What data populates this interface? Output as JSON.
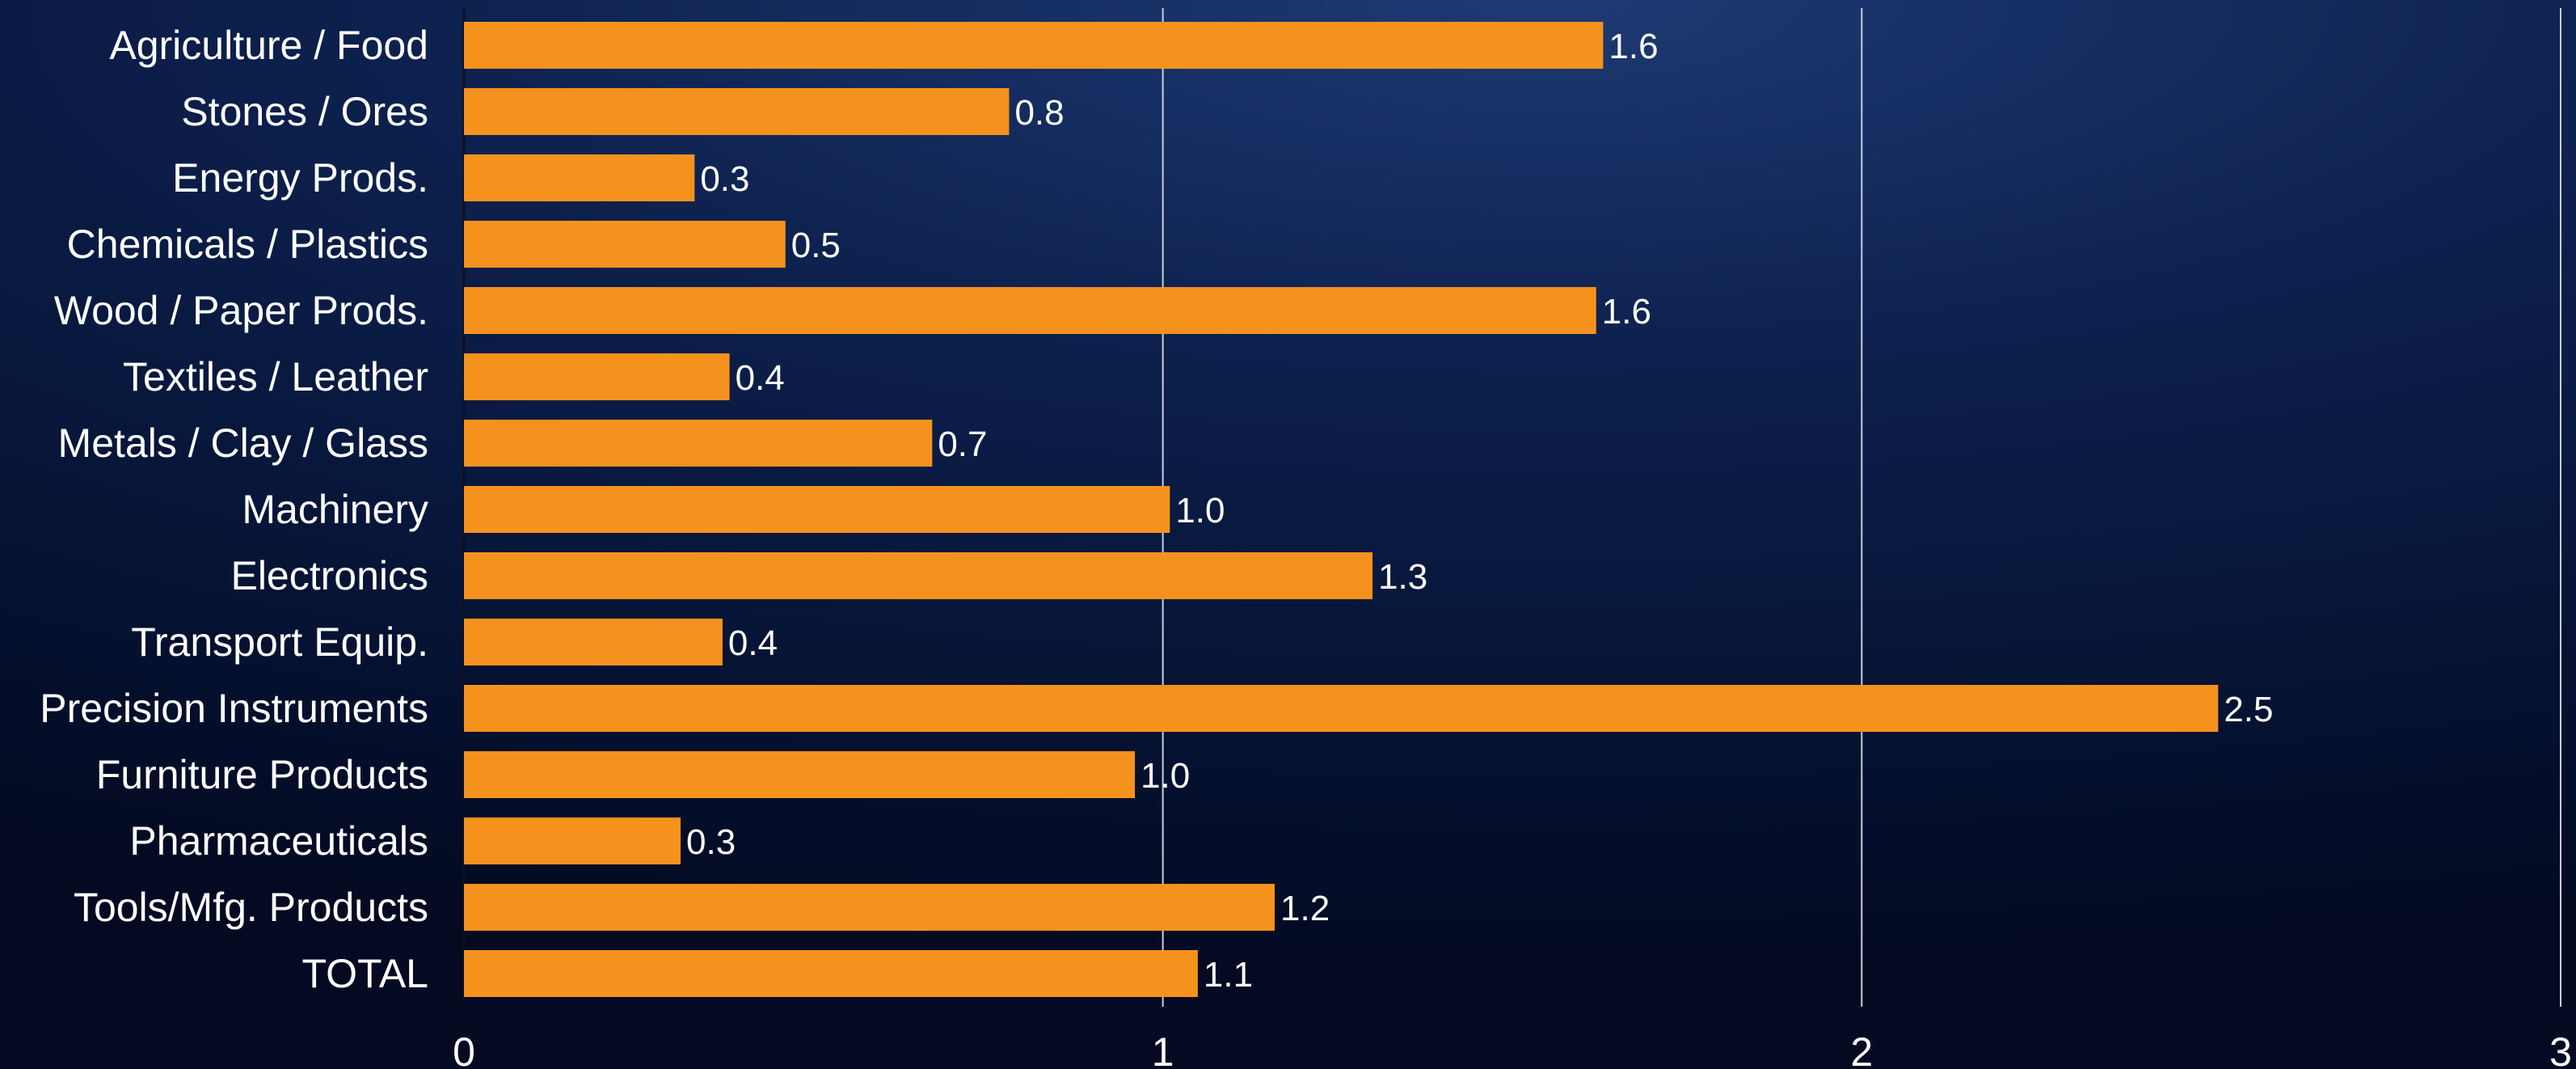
{
  "chart_data": {
    "type": "bar",
    "orientation": "horizontal",
    "title": "",
    "xlabel": "",
    "ylabel": "",
    "categories": [
      "Agriculture / Food",
      "Stones / Ores",
      "Energy Prods.",
      "Chemicals / Plastics",
      "Wood / Paper Prods.",
      "Textiles / Leather",
      "Metals / Clay / Glass",
      "Machinery",
      "Electronics",
      "Transport Equip.",
      "Precision Instruments",
      "Furniture Products",
      "Pharmaceuticals",
      "Tools/Mfg. Products",
      "TOTAL"
    ],
    "values": [
      1.63,
      0.78,
      0.33,
      0.46,
      1.62,
      0.38,
      0.67,
      1.01,
      1.3,
      0.37,
      2.51,
      0.96,
      0.31,
      1.16,
      1.05
    ],
    "value_labels": [
      "1.6",
      "0.8",
      "0.3",
      "0.5",
      "1.6",
      "0.4",
      "0.7",
      "1.0",
      "1.3",
      "0.4",
      "2.5",
      "1.0",
      "0.3",
      "1.2",
      "1.1"
    ],
    "xlim": [
      0,
      3
    ],
    "x_ticks": [
      0,
      1,
      2,
      3
    ],
    "x_tick_labels": [
      "0",
      "1",
      "2",
      "3"
    ],
    "grid": true,
    "legend": "none",
    "colors": {
      "bar": "#f5921e",
      "text": "#ffffff",
      "grid": "#c8cdd8",
      "background_top": "#1e3a74",
      "background_bottom": "#030a22"
    }
  }
}
